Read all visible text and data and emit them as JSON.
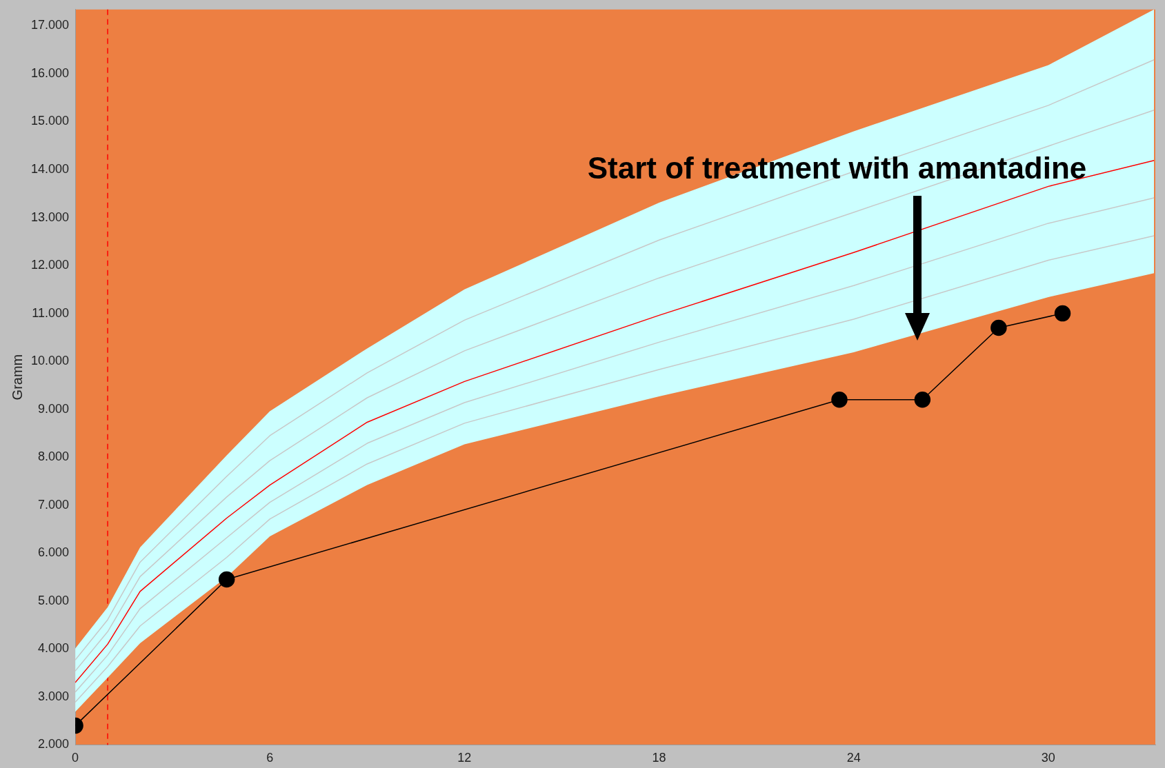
{
  "chart_data": {
    "type": "line",
    "ylabel": "Gramm",
    "xlim": [
      0,
      33.3
    ],
    "xticks": [
      0,
      6,
      12,
      18,
      24,
      30
    ],
    "ylim": [
      2000,
      17340
    ],
    "yticks": [
      {
        "value": 2000,
        "label": "2.000"
      },
      {
        "value": 3000,
        "label": "3.000"
      },
      {
        "value": 4000,
        "label": "4.000"
      },
      {
        "value": 5000,
        "label": "5.000"
      },
      {
        "value": 6000,
        "label": "6.000"
      },
      {
        "value": 7000,
        "label": "7.000"
      },
      {
        "value": 8000,
        "label": "8.000"
      },
      {
        "value": 9000,
        "label": "9.000"
      },
      {
        "value": 10000,
        "label": "10.000"
      },
      {
        "value": 11000,
        "label": "11.000"
      },
      {
        "value": 12000,
        "label": "12.000"
      },
      {
        "value": 13000,
        "label": "13.000"
      },
      {
        "value": 14000,
        "label": "14.000"
      },
      {
        "value": 15000,
        "label": "15.000"
      },
      {
        "value": 16000,
        "label": "16.000"
      },
      {
        "value": 17000,
        "label": "17.000"
      }
    ],
    "grid": false,
    "legend": false,
    "series": [
      {
        "type": "line",
        "color": "#c8c8c8",
        "x": [
          0,
          1,
          2,
          4.67,
          6,
          9,
          12,
          18,
          24,
          30,
          33.26
        ],
        "values": [
          3770,
          4610,
          5810,
          7600,
          8450,
          9760,
          10860,
          12530,
          13960,
          15340,
          16290
        ]
      },
      {
        "type": "line",
        "color": "#c8c8c8",
        "x": [
          0,
          1,
          2,
          4.67,
          6,
          9,
          12,
          18,
          24,
          30,
          33.26
        ],
        "values": [
          3540,
          4360,
          5510,
          7170,
          7930,
          9240,
          10220,
          11740,
          13110,
          14490,
          15240
        ]
      },
      {
        "type": "line",
        "color": "#c8c8c8",
        "x": [
          0,
          1,
          2,
          4.67,
          6,
          9,
          12,
          18,
          24,
          30,
          33.26
        ],
        "values": [
          3100,
          3870,
          4840,
          6320,
          7060,
          8290,
          9140,
          10400,
          11580,
          12880,
          13410
        ]
      },
      {
        "type": "line",
        "color": "#c8c8c8",
        "x": [
          0,
          1,
          2,
          4.67,
          6,
          9,
          12,
          18,
          24,
          30,
          33.26
        ],
        "values": [
          2890,
          3630,
          4480,
          5910,
          6710,
          7860,
          8710,
          9830,
          10880,
          12110,
          12620
        ]
      },
      {
        "type": "line",
        "color": "#ff0000",
        "x": [
          0,
          1,
          2,
          4.67,
          6,
          9,
          12,
          18,
          24,
          30,
          33.26
        ],
        "values": [
          3300,
          4100,
          5200,
          6730,
          7420,
          8730,
          9580,
          10960,
          12270,
          13650,
          14190
        ],
        "lower": [
          2690,
          3400,
          4120,
          5500,
          6350,
          7420,
          8270,
          9270,
          10190,
          11340,
          11840
        ],
        "upper": [
          4010,
          4870,
          6120,
          8040,
          8960,
          10270,
          11500,
          13310,
          14800,
          16180,
          17340
        ]
      },
      {
        "type": "line",
        "color": "#000000",
        "marker": "circle",
        "x": [
          0,
          4.67,
          23.56,
          26.12,
          28.47,
          30.44
        ],
        "values": [
          2400,
          5450,
          9200,
          9200,
          10700,
          11000
        ]
      }
    ],
    "ref_lines": [
      {
        "axis": "x",
        "value": 1,
        "color": "#ff0000",
        "line_style": "dashed"
      }
    ],
    "annotations": [
      "Start of treatment with amantadine"
    ]
  }
}
